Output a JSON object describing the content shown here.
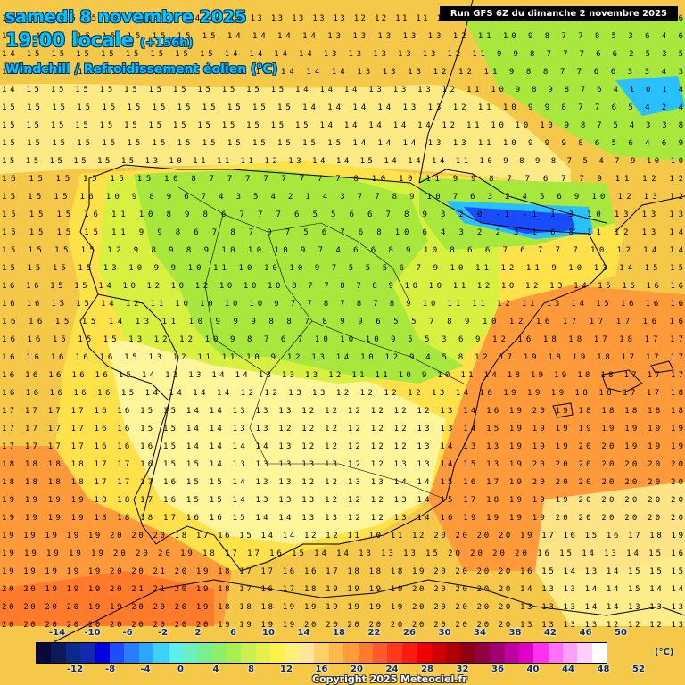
{
  "header": {
    "date": "samedi 8 novembre 2025",
    "time": "19:00 locale",
    "lead": "(+156h)",
    "parameter": "Windchill / Refroidissement éolien (°C)",
    "run": "Run GFS 6Z du dimanche 2 novembre 2025"
  },
  "legend": {
    "top_ticks": [
      "-14",
      "-10",
      "-6",
      "-2",
      "2",
      "6",
      "10",
      "14",
      "18",
      "22",
      "26",
      "30",
      "34",
      "38",
      "42",
      "46",
      "50"
    ],
    "bottom_ticks": [
      "-12",
      "-8",
      "-4",
      "0",
      "4",
      "8",
      "12",
      "16",
      "20",
      "24",
      "28",
      "32",
      "36",
      "40",
      "44",
      "48",
      "52"
    ],
    "unit": "(°C)",
    "colors": [
      "#0a0a3a",
      "#0a1a5a",
      "#0a2a8a",
      "#1428b0",
      "#0000e0",
      "#1e4cff",
      "#2a7cff",
      "#2aa8ff",
      "#3cd2ff",
      "#5af0f0",
      "#6cf0c0",
      "#78f090",
      "#8ef06a",
      "#a8f050",
      "#c8f050",
      "#e6f04a",
      "#fff04a",
      "#fff07a",
      "#ffe69a",
      "#ffd06a",
      "#ffb84a",
      "#ff9c3a",
      "#ff7a2a",
      "#ff5a2a",
      "#ff3a1a",
      "#ff1a10",
      "#f00000",
      "#d00000",
      "#b00000",
      "#900010",
      "#900040",
      "#a00070",
      "#c000a0",
      "#e000c8",
      "#ff30f0",
      "#ff70ff",
      "#ffa0ff",
      "#ffd0ff",
      "#ffffff"
    ],
    "copyright": "Copyright 2025 Meteociel.fr"
  },
  "map": {
    "colors": {
      "sea": "#f5c84a",
      "mid": "#ffe14a",
      "pale": "#fff59a",
      "green": "#a8e83c",
      "lime": "#d8f040",
      "cyan": "#28c0ff",
      "blue": "#1a4cff",
      "warm": "#ff9a3a",
      "hot": "#ff7a2a",
      "border": "#000000",
      "numbers": "#000000"
    },
    "label_rows": [
      {
        "y": 23,
        "text": "15 15 15 15 15 15 15 14 15 14 14 14 13 13 13 13 13 12 12 11 11 10 8 7 7 7 6 5 5 5 4 5 4 5 5 5 5 6 6"
      },
      {
        "y": 43,
        "text": "14 14 15 15 15 15 15 15 15 14 14 14 14 13 13 13 13 13 12 11 10 9 8 7 7 8 5 3 6 4 6"
      },
      {
        "y": 63,
        "text": "14 15 15 15 15 15 15 15 15 14 14 14 14 13 13 13 13 13 12 11 9 9 8 7 7 7 6 6 2 5 3 5"
      },
      {
        "y": 83,
        "text": "15 15 15 15 15 15 15 15 15 15 15 14 14 14 13 13 13 12 12 11 9 8 8 7 7 6 6 3 3 4 3"
      },
      {
        "y": 103,
        "text": "14 15 15 15 15 15 15 15 15 15 15 15 14 14 14 13 13 13 12 11 10 9 8 9 8 7 6 4 1 0 1 4"
      },
      {
        "y": 123,
        "text": "15 15 15 15 15 15 15 15 15 15 15 15 14 14 14 14 13 13 12 11 10 9 9 8 7 7 6 5 4 2 4"
      },
      {
        "y": 143,
        "text": "15 15 15 15 15 15 15 15 15 15 15 15 15 14 14 14 14 14 12 11 10 10 10 9 8 7 5 4 3 3 8"
      },
      {
        "y": 163,
        "text": "15 15 15 15 15 15 15 15 15 15 15 15 15 15 14 14 14 13 13 11 10 9 9 9 8 6 5 6 4 6 9"
      },
      {
        "y": 183,
        "text": "15 15 15 15 15 15 13 10 11 11 11 12 13 14 14 15 14 14 14 11 10 9 8 9 8 7 5 4 7 9 10 10"
      },
      {
        "y": 203,
        "text": "16 15 15 15 15 15 10 8 7 7 7 7 7 7 7 7 8 10 10 11 9 9 8 7 7 6 7 7 9 11 12 12"
      },
      {
        "y": 223,
        "text": "15 15 15 16 10 9 8 9 6 7 4 3 5 4 2 1 4 3 7 7 8 9 10 7 6 3 2 4 5 6 9 10 12 13 12"
      },
      {
        "y": 243,
        "text": "15 15 15 16 11 10 8 9 8 6 7 7 7 6 5 5 6 6 7 8 9 3 2 0 -1 -1 1 3 10 13 13 13"
      },
      {
        "y": 263,
        "text": "15 15 15 15 11 9 9 8 6 7 8 7 9 7 5 6 7 6 8 10 6 4 3 2 2 3 1 6 8 11 12 13 14"
      },
      {
        "y": 283,
        "text": "15 15 15 15 12 9 8 9 8 9 10 10 10 9 7 4 6 6 8 9 10 8 6 6 7 6 7 7 7 10 12 14 14"
      },
      {
        "y": 303,
        "text": "15 15 15 15 13 10 9 9 10 11 10 10 10 9 7 5 5 5 6 7 9 10 11 12 11 9 10 13 14 15 15"
      },
      {
        "y": 323,
        "text": "16 16 15 15 14 10 12 10 12 10 10 10 8 7 7 8 7 8 9 10 10 11 12 10 12 13 14 15 16 16 16"
      },
      {
        "y": 343,
        "text": "16 16 15 15 14 12 11 10 10 10 10 9 7 7 8 7 8 7 8 9 10 11 11 12 11 13 14 15 16 16 16"
      },
      {
        "y": 363,
        "text": "16 16 15 15 14 13 11 10 9 9 9 8 8 7 8 9 9 6 5 5 7 8 9 10 12 16 17 17 17 16 16"
      },
      {
        "y": 383,
        "text": "16 16 15 15 15 13 12 12 10 9 8 7 6 7 10 10 10 9 5 5 3 6 9 12 16 18 18 17 18 17 17"
      },
      {
        "y": 403,
        "text": "16 16 16 16 16 15 13 12 11 11 10 9 12 13 14 10 12 9 4 5 8 12 17 19 18 19 18 17 17 17"
      },
      {
        "y": 423,
        "text": "16 16 16 16 16 15 14 13 13 14 14 13 13 13 12 11 11 10 9 10 11 14 18 19 19 18 18 17 17 17"
      },
      {
        "y": 443,
        "text": "16 16 16 16 16 15 14 14 14 14 12 12 13 13 12 12 12 12 13 14 16 19 19 19 18 18 17 17 18"
      },
      {
        "y": 463,
        "text": "17 17 17 17 16 16 15 15 14 14 13 13 13 12 12 12 12 12 12 13 14 16 19 20 19 18 18 18 18 18"
      },
      {
        "y": 483,
        "text": "17 17 17 17 16 16 15 15 14 14 13 13 12 12 12 12 12 12 13 13 14 15 19 19 19 19 19 19 19 19"
      },
      {
        "y": 503,
        "text": "17 17 17 17 16 16 16 15 14 14 14 14 13 12 12 12 12 12 13 14 13 13 19 19 19 20 20 19 19 19"
      },
      {
        "y": 523,
        "text": "18 18 18 18 17 17 16 15 15 14 13 13 13 13 13 12 12 13 13 14 15 13 19 20 20 20 20 20 20 20"
      },
      {
        "y": 543,
        "text": "18 18 18 18 17 17 17 16 15 15 14 13 13 12 12 13 13 14 14 15 16 17 19 20 20 20 20 20 20 20"
      },
      {
        "y": 563,
        "text": "19 19 19 19 18 18 17 16 15 15 14 13 13 13 12 12 12 13 14 15 17 18 19 19 19 20 20 20 20 20"
      },
      {
        "y": 583,
        "text": "19 19 19 19 18 18 18 17 16 16 15 14 14 13 13 12 12 13 14 16 19 19 19 19 20 20 20 20 20 20"
      },
      {
        "y": 603,
        "text": "19 19 19 19 19 20 20 20 18 17 16 15 14 14 12 12 11 10 11 12 20 20 20 20 19 17 16 15 16 17 18 19"
      },
      {
        "y": 623,
        "text": "19 19 19 19 19 20 20 20 19 18 17 17 16 15 14 14 13 13 13 15 20 20 20 20 16 15 14 13 14 15 16"
      },
      {
        "y": 643,
        "text": "19 19 19 19 19 20 20 21 20 19 18 17 17 16 16 17 18 18 18 19 20 20 20 20 16 15 14 13 14 15 15 15"
      },
      {
        "y": 663,
        "text": "20 20 19 19 19 20 21 21 20 19 18 17 16 17 18 19 19 19 19 20 20 20 20 20 14 13 13 14 14 15 14 14"
      },
      {
        "y": 683,
        "text": "20 20 20 20 19 19 20 20 20 19 18 18 18 19 19 19 19 19 19 20 20 20 20 20 13 13 13 14 14 13 13 13"
      },
      {
        "y": 703,
        "text": "20 20 20 20 20 20 20 20 20 20 19 19 19 19 20 20 20 20 20 20 20 20 20 20 13 13 13 13 12 12 12 13"
      }
    ]
  }
}
